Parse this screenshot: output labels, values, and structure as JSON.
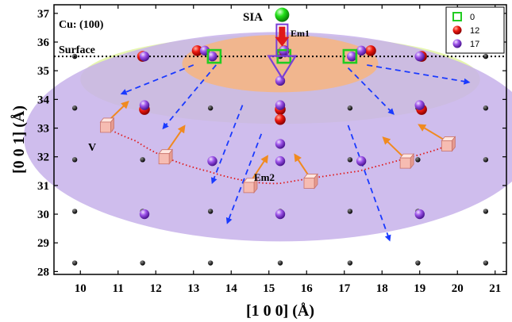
{
  "chart_data": {
    "type": "scatter",
    "title": "",
    "xlabel": "[1 0 0] (Å)",
    "ylabel": "[0 0 1] (Å)",
    "xlim": [
      9.3,
      21.3
    ],
    "ylim": [
      27.9,
      37.3
    ],
    "x_ticks": [
      "10",
      "11",
      "12",
      "13",
      "14",
      "15",
      "16",
      "17",
      "18",
      "19",
      "20",
      "21"
    ],
    "y_ticks": [
      "28",
      "29",
      "30",
      "31",
      "32",
      "33",
      "34",
      "35",
      "36",
      "37"
    ],
    "annotations": {
      "cell": "Cu: (100)",
      "surface": "Surface",
      "sia": "SIA",
      "em1": "Em1",
      "em2": "Em2",
      "v": "V"
    },
    "surface_z": 35.5,
    "legend": [
      {
        "label": "0",
        "marker": "open-square",
        "color": "#22cc22"
      },
      {
        "label": "12",
        "marker": "sphere",
        "color": "#e01010"
      },
      {
        "label": "17",
        "marker": "sphere",
        "color": "#8c3fd6"
      }
    ],
    "lattice_atoms": [
      [
        9.85,
        35.5
      ],
      [
        11.65,
        35.5
      ],
      [
        13.45,
        35.5
      ],
      [
        15.3,
        35.5
      ],
      [
        17.15,
        35.5
      ],
      [
        18.95,
        35.5
      ],
      [
        20.75,
        35.5
      ],
      [
        9.85,
        33.7
      ],
      [
        11.65,
        33.7
      ],
      [
        13.45,
        33.7
      ],
      [
        15.3,
        33.7
      ],
      [
        17.15,
        33.7
      ],
      [
        18.95,
        33.7
      ],
      [
        20.75,
        33.7
      ],
      [
        9.85,
        31.9
      ],
      [
        11.65,
        31.9
      ],
      [
        13.45,
        31.9
      ],
      [
        15.3,
        31.9
      ],
      [
        17.15,
        31.9
      ],
      [
        18.95,
        31.9
      ],
      [
        20.75,
        31.9
      ],
      [
        9.85,
        30.1
      ],
      [
        11.65,
        30.1
      ],
      [
        13.45,
        30.1
      ],
      [
        15.3,
        30.1
      ],
      [
        17.15,
        30.1
      ],
      [
        18.95,
        30.1
      ],
      [
        20.75,
        30.1
      ],
      [
        9.85,
        28.3
      ],
      [
        11.65,
        28.3
      ],
      [
        13.45,
        28.3
      ],
      [
        15.3,
        28.3
      ],
      [
        17.15,
        28.3
      ],
      [
        18.95,
        28.3
      ],
      [
        20.75,
        28.3
      ]
    ],
    "series": [
      {
        "name": "0",
        "points": [
          [
            13.55,
            35.5
          ],
          [
            15.4,
            35.5
          ],
          [
            17.15,
            35.5
          ]
        ]
      },
      {
        "name": "12",
        "points": [
          [
            11.65,
            35.5
          ],
          [
            13.1,
            35.7
          ],
          [
            17.7,
            35.7
          ],
          [
            19.05,
            35.5
          ],
          [
            11.7,
            33.65
          ],
          [
            15.3,
            33.65
          ],
          [
            15.3,
            33.3
          ],
          [
            19.05,
            33.65
          ],
          [
            15.4,
            35.7
          ]
        ]
      },
      {
        "name": "17",
        "points": [
          [
            11.7,
            35.5
          ],
          [
            13.3,
            35.7
          ],
          [
            13.5,
            35.5
          ],
          [
            17.45,
            35.7
          ],
          [
            17.2,
            35.5
          ],
          [
            19.0,
            35.5
          ],
          [
            15.4,
            35.7
          ],
          [
            11.7,
            33.8
          ],
          [
            15.3,
            33.8
          ],
          [
            19.0,
            33.8
          ],
          [
            15.3,
            32.45
          ],
          [
            13.5,
            31.85
          ],
          [
            15.3,
            31.85
          ],
          [
            17.45,
            31.85
          ],
          [
            11.7,
            30.0
          ],
          [
            15.3,
            30.0
          ],
          [
            19.0,
            30.0
          ],
          [
            15.3,
            34.65
          ]
        ]
      }
    ],
    "sia_position": [
      15.35,
      36.95
    ],
    "vacancy_cubes": [
      [
        10.7,
        33.1
      ],
      [
        12.25,
        32.0
      ],
      [
        14.5,
        31.0
      ],
      [
        16.1,
        31.15
      ],
      [
        18.65,
        31.85
      ],
      [
        19.75,
        32.45
      ]
    ],
    "em2_path": [
      [
        10.7,
        33.1
      ],
      [
        12.25,
        32.0
      ],
      [
        14.5,
        31.0
      ],
      [
        16.1,
        31.15
      ],
      [
        18.65,
        31.85
      ],
      [
        19.75,
        32.45
      ]
    ],
    "arrows_orange": [
      [
        [
          10.7,
          33.2
        ],
        [
          11.25,
          33.9
        ]
      ],
      [
        [
          12.25,
          32.1
        ],
        [
          12.75,
          33.05
        ]
      ],
      [
        [
          14.5,
          31.1
        ],
        [
          14.95,
          32.0
        ]
      ],
      [
        [
          16.1,
          31.25
        ],
        [
          15.7,
          32.05
        ]
      ],
      [
        [
          18.6,
          31.95
        ],
        [
          18.05,
          32.65
        ]
      ],
      [
        [
          19.7,
          32.55
        ],
        [
          19.0,
          33.1
        ]
      ]
    ],
    "arrows_blue": [
      [
        [
          13.0,
          35.2
        ],
        [
          11.1,
          34.2
        ]
      ],
      [
        [
          13.6,
          35.2
        ],
        [
          12.2,
          33.0
        ]
      ],
      [
        [
          14.3,
          33.8
        ],
        [
          13.5,
          31.1
        ]
      ],
      [
        [
          14.8,
          32.8
        ],
        [
          13.9,
          29.7
        ]
      ],
      [
        [
          17.1,
          33.1
        ],
        [
          18.2,
          29.1
        ]
      ],
      [
        [
          17.1,
          35.1
        ],
        [
          18.3,
          33.5
        ]
      ],
      [
        [
          17.6,
          35.2
        ],
        [
          20.3,
          34.6
        ]
      ]
    ],
    "regions": [
      {
        "name": "surface-zone",
        "color": "#e2f5a0",
        "center": [
          15.3,
          34.7
        ],
        "r": [
          5.3,
          1.55
        ]
      },
      {
        "name": "bulk-zone",
        "color": "#c7b2ea",
        "center": [
          15.3,
          32.7
        ],
        "r": [
          6.8,
          3.65
        ]
      },
      {
        "name": "core-zone",
        "color": "#f7b57f",
        "center": [
          15.3,
          35.25
        ],
        "r": [
          2.6,
          1.0
        ]
      }
    ]
  }
}
